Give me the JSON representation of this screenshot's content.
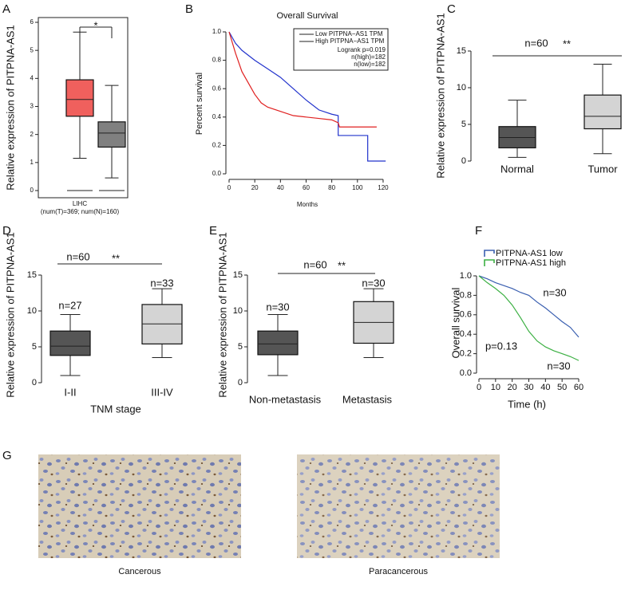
{
  "chart_data": [
    {
      "panel": "A",
      "type": "box",
      "ylabel": "Relative expression of PITPNA-AS1",
      "categories": [
        null,
        null
      ],
      "xlabel": "LIHC",
      "xsublabel": "(num(T)=369; num(N)=160)",
      "ylim": [
        0,
        6
      ],
      "yticks": [
        0,
        1,
        2,
        3,
        4,
        5,
        6
      ],
      "boxes": [
        {
          "color": "#f0605d",
          "whislo": 1.15,
          "q1": 2.65,
          "med": 3.25,
          "q3": 3.95,
          "whishi": 5.65
        },
        {
          "color": "#808080",
          "whislo": 0.45,
          "q1": 1.55,
          "med": 2.05,
          "q3": 2.45,
          "whishi": 3.75
        }
      ],
      "annotations": [
        {
          "text": "*",
          "color": "#ff0000"
        }
      ]
    },
    {
      "panel": "B",
      "type": "km",
      "title": "Overall Survival",
      "xlabel": "Months",
      "ylabel": "Percent survival",
      "xlim": [
        0,
        125
      ],
      "ylim": [
        0,
        1
      ],
      "xticks": [
        0,
        20,
        40,
        60,
        80,
        100,
        120
      ],
      "yticks": [
        {
          "value": 0,
          "label": "0.0"
        },
        0.2,
        0.4,
        0.6,
        0.8,
        {
          "value": 1,
          "label": "1.0"
        }
      ],
      "series": [
        {
          "name": "Low PITPNA−AS1 TPM",
          "color": "#2233cc",
          "x": [
            0,
            5,
            10,
            20,
            30,
            40,
            50,
            60,
            70,
            80,
            85,
            85,
            108,
            108,
            122
          ],
          "values": [
            1,
            0.92,
            0.87,
            0.8,
            0.74,
            0.68,
            0.6,
            0.52,
            0.45,
            0.42,
            0.41,
            0.27,
            0.27,
            0.09,
            0.09
          ]
        },
        {
          "name": "High PITPNA−AS1 TPM",
          "color": "#e02020",
          "x": [
            0,
            5,
            10,
            15,
            20,
            25,
            30,
            40,
            50,
            60,
            70,
            80,
            85,
            86,
            115
          ],
          "values": [
            1,
            0.85,
            0.72,
            0.64,
            0.56,
            0.5,
            0.47,
            0.44,
            0.41,
            0.4,
            0.39,
            0.38,
            0.36,
            0.33,
            0.33
          ]
        }
      ],
      "annotations": [
        {
          "text": "Logrank p=0.019"
        },
        {
          "text": "n(high)=182"
        },
        {
          "text": "n(low)=182"
        }
      ]
    },
    {
      "panel": "C",
      "type": "box",
      "ylabel": "Relative expression of PITPNA-AS1",
      "categories": [
        "Normal",
        "Tumor"
      ],
      "ylim": [
        0,
        15
      ],
      "yticks": [
        0,
        5,
        10,
        15
      ],
      "boxes": [
        {
          "color": "#555555",
          "whislo": 0.5,
          "q1": 1.8,
          "med": 3.2,
          "q3": 4.7,
          "whishi": 8.3
        },
        {
          "color": "#d4d4d4",
          "whislo": 1.0,
          "q1": 4.4,
          "med": 6.1,
          "q3": 9.0,
          "whishi": 13.2
        }
      ],
      "annotations": [
        {
          "text": "n=60"
        },
        {
          "text": "**"
        }
      ]
    },
    {
      "panel": "D",
      "type": "box",
      "ylabel": "Relative expression of PITPNA-AS1",
      "categories": [
        "I-II",
        "III-IV"
      ],
      "xlabel": "TNM stage",
      "ylim": [
        0,
        15
      ],
      "yticks": [
        0,
        5,
        10,
        15
      ],
      "boxes": [
        {
          "color": "#555555",
          "whislo": 1.0,
          "q1": 3.8,
          "med": 5.1,
          "q3": 7.2,
          "whishi": 9.5
        },
        {
          "color": "#d4d4d4",
          "whislo": 3.5,
          "q1": 5.4,
          "med": 8.2,
          "q3": 10.9,
          "whishi": 13.1
        }
      ],
      "annotations": [
        {
          "text": "n=60"
        },
        {
          "text": "**"
        },
        {
          "text": "n=27"
        },
        {
          "text": "n=33"
        }
      ]
    },
    {
      "panel": "E",
      "type": "box",
      "ylabel": "Relative expression of PITPNA-AS1",
      "categories": [
        "Non-metastasis",
        "Metastasis"
      ],
      "ylim": [
        0,
        15
      ],
      "yticks": [
        0,
        5,
        10,
        15
      ],
      "boxes": [
        {
          "color": "#555555",
          "whislo": 1.0,
          "q1": 3.9,
          "med": 5.4,
          "q3": 7.2,
          "whishi": 9.5
        },
        {
          "color": "#d4d4d4",
          "whislo": 3.5,
          "q1": 5.5,
          "med": 8.4,
          "q3": 11.3,
          "whishi": 13.1
        }
      ],
      "annotations": [
        {
          "text": "n=60"
        },
        {
          "text": "**"
        },
        {
          "text": "n=30"
        },
        {
          "text": "n=30"
        }
      ]
    },
    {
      "panel": "F",
      "type": "km",
      "xlabel": "Time (h)",
      "ylabel": "Overall survival",
      "xlim": [
        0,
        60
      ],
      "ylim": [
        0,
        1
      ],
      "xticks": [
        0,
        10,
        20,
        30,
        40,
        50,
        60
      ],
      "yticks": [
        {
          "value": 0,
          "label": "0.0"
        },
        0.2,
        0.4,
        0.6,
        0.8,
        {
          "value": 1,
          "label": "1.0"
        }
      ],
      "series": [
        {
          "name": "PITPNA-AS1 low",
          "color": "#3a5fb0",
          "x": [
            0,
            5,
            10,
            15,
            20,
            25,
            30,
            35,
            40,
            45,
            50,
            55,
            60
          ],
          "values": [
            1,
            0.97,
            0.93,
            0.9,
            0.87,
            0.83,
            0.8,
            0.73,
            0.67,
            0.6,
            0.53,
            0.47,
            0.37
          ]
        },
        {
          "name": "PITPNA-AS1 high",
          "color": "#3cb043",
          "x": [
            0,
            5,
            10,
            15,
            20,
            25,
            30,
            35,
            40,
            45,
            50,
            55,
            60
          ],
          "values": [
            1,
            0.93,
            0.87,
            0.8,
            0.7,
            0.57,
            0.43,
            0.33,
            0.27,
            0.23,
            0.2,
            0.17,
            0.13
          ]
        }
      ],
      "annotations": [
        {
          "text": "n=30"
        },
        {
          "text": "p=0.13"
        },
        {
          "text": "n=30"
        }
      ]
    }
  ],
  "figure_g": {
    "panel": "G",
    "captions": [
      "Cancerous",
      "Paracancerous"
    ]
  }
}
